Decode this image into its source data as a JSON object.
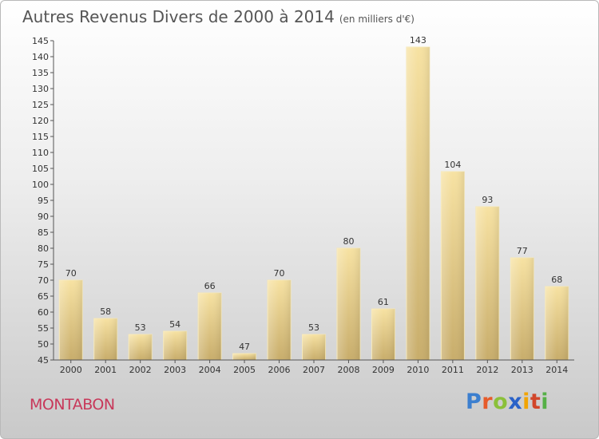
{
  "chart_data": {
    "type": "bar",
    "title": "Autres Revenus Divers de 2000 à 2014",
    "subtitle": "(en milliers d'€)",
    "categories": [
      "2000",
      "2001",
      "2002",
      "2003",
      "2004",
      "2005",
      "2006",
      "2007",
      "2008",
      "2009",
      "2010",
      "2011",
      "2012",
      "2013",
      "2014"
    ],
    "values": [
      70,
      58,
      53,
      54,
      66,
      47,
      70,
      53,
      80,
      61,
      143,
      104,
      93,
      77,
      68
    ],
    "ylim": [
      45,
      145
    ],
    "yticks": [
      45,
      50,
      55,
      60,
      65,
      70,
      75,
      80,
      85,
      90,
      95,
      100,
      105,
      110,
      115,
      120,
      125,
      130,
      135,
      140,
      145
    ],
    "grid": false,
    "bar_color": "#efd48c"
  },
  "footer": {
    "place": "MONTABON",
    "logo": {
      "p": "P",
      "r": "r",
      "o": "o",
      "x": "x",
      "i1": "i",
      "t": "t",
      "i2": "i"
    }
  }
}
